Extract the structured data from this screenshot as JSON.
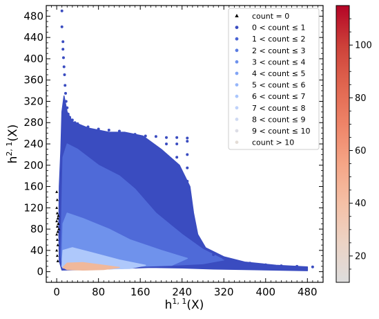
{
  "chart_data": {
    "type": "scatter",
    "xlabel": "h^{1,1}(X)",
    "ylabel": "h^{2,1}(X)",
    "xlabel_main": "h",
    "xlabel_sup": "1, 1",
    "xlabel_tail": "(X)",
    "ylabel_main": "h",
    "ylabel_sup": "2, 1",
    "ylabel_tail": "(X)",
    "xlim": [
      -20,
      510
    ],
    "ylim": [
      -20,
      500
    ],
    "xticks": [
      0,
      80,
      160,
      240,
      320,
      400,
      480
    ],
    "yticks": [
      0,
      40,
      80,
      120,
      160,
      200,
      240,
      280,
      320,
      360,
      400,
      440,
      480
    ],
    "grid": false,
    "legend_position": "top-right",
    "legend": [
      {
        "label": "count = 0",
        "marker": "triangle",
        "color": "#000000"
      },
      {
        "label": "0 < count ≤ 1",
        "marker": "circle",
        "color": "#3a4cc0"
      },
      {
        "label": "1 < count ≤ 2",
        "marker": "circle",
        "color": "#4a64d4"
      },
      {
        "label": "2 < count ≤ 3",
        "marker": "circle",
        "color": "#5a7ce2"
      },
      {
        "label": "3 < count ≤ 4",
        "marker": "circle",
        "color": "#6d91ed"
      },
      {
        "label": "4 < count ≤ 5",
        "marker": "circle",
        "color": "#81a4f5"
      },
      {
        "label": "5 < count ≤ 6",
        "marker": "circle",
        "color": "#96b6fa"
      },
      {
        "label": "6 < count ≤ 7",
        "marker": "circle",
        "color": "#aac6fd"
      },
      {
        "label": "7 < count ≤ 8",
        "marker": "circle",
        "color": "#bed2fb"
      },
      {
        "label": "8 < count ≤ 9",
        "marker": "circle",
        "color": "#cfdaf2"
      },
      {
        "label": "9 < count ≤ 10",
        "marker": "circle",
        "color": "#dcdde6"
      },
      {
        "label": "count > 10",
        "marker": "circle",
        "color": "#e3dcd6"
      }
    ],
    "colorbar": {
      "range": [
        10,
        115
      ],
      "ticks": [
        20,
        40,
        60,
        80,
        100
      ],
      "colormap": "coolwarm",
      "colors": [
        "#dddddd",
        "#ecd3c5",
        "#f5c0a6",
        "#f5a586",
        "#ee8468",
        "#e0654f",
        "#cc4039",
        "#b40426"
      ]
    },
    "regions": [
      {
        "name": "count 0-1 envelope",
        "color": "#3a4cc0",
        "polygon": [
          [
            5,
            20
          ],
          [
            4,
            80
          ],
          [
            5,
            160
          ],
          [
            8,
            230
          ],
          [
            10,
            300
          ],
          [
            14,
            330
          ],
          [
            20,
            300
          ],
          [
            30,
            282
          ],
          [
            60,
            270
          ],
          [
            100,
            262
          ],
          [
            130,
            262
          ],
          [
            165,
            255
          ],
          [
            200,
            230
          ],
          [
            235,
            200
          ],
          [
            255,
            160
          ],
          [
            262,
            110
          ],
          [
            270,
            70
          ],
          [
            285,
            45
          ],
          [
            320,
            28
          ],
          [
            360,
            18
          ],
          [
            420,
            12
          ],
          [
            480,
            9
          ],
          [
            480,
            2
          ],
          [
            360,
            4
          ],
          [
            300,
            5
          ],
          [
            240,
            7
          ],
          [
            180,
            8
          ],
          [
            120,
            6
          ],
          [
            60,
            4
          ],
          [
            10,
            3
          ]
        ]
      },
      {
        "name": "count 1-3 band",
        "color": "#4f6ad8",
        "polygon": [
          [
            8,
            30
          ],
          [
            10,
            130
          ],
          [
            12,
            215
          ],
          [
            20,
            240
          ],
          [
            40,
            230
          ],
          [
            80,
            200
          ],
          [
            120,
            180
          ],
          [
            150,
            155
          ],
          [
            190,
            110
          ],
          [
            240,
            70
          ],
          [
            280,
            42
          ],
          [
            320,
            22
          ],
          [
            280,
            15
          ],
          [
            220,
            12
          ],
          [
            160,
            12
          ],
          [
            100,
            12
          ],
          [
            40,
            12
          ],
          [
            10,
            15
          ]
        ]
      },
      {
        "name": "count 3-6 band",
        "color": "#6f92ec",
        "polygon": [
          [
            10,
            22
          ],
          [
            12,
            90
          ],
          [
            20,
            110
          ],
          [
            50,
            100
          ],
          [
            100,
            80
          ],
          [
            140,
            60
          ],
          [
            200,
            40
          ],
          [
            250,
            25
          ],
          [
            220,
            12
          ],
          [
            160,
            10
          ],
          [
            100,
            9
          ],
          [
            40,
            9
          ],
          [
            12,
            12
          ]
        ]
      },
      {
        "name": "count 6-10 band",
        "color": "#aec8fb",
        "polygon": [
          [
            10,
            10
          ],
          [
            12,
            40
          ],
          [
            30,
            45
          ],
          [
            70,
            35
          ],
          [
            120,
            22
          ],
          [
            170,
            12
          ],
          [
            140,
            6
          ],
          [
            80,
            5
          ],
          [
            30,
            6
          ],
          [
            12,
            7
          ]
        ]
      },
      {
        "name": "count >10 core",
        "color": "#f0b89b",
        "polygon": [
          [
            12,
            8
          ],
          [
            20,
            16
          ],
          [
            50,
            17
          ],
          [
            90,
            12
          ],
          [
            120,
            8
          ],
          [
            90,
            4
          ],
          [
            50,
            3
          ],
          [
            20,
            4
          ]
        ]
      }
    ],
    "sample_points": {
      "outer_spike_0_1": [
        [
          10,
          490
        ],
        [
          10,
          460
        ],
        [
          12,
          432
        ],
        [
          12,
          418
        ],
        [
          13,
          402
        ],
        [
          14,
          385
        ],
        [
          15,
          370
        ],
        [
          16,
          350
        ],
        [
          17,
          335
        ],
        [
          18,
          320
        ],
        [
          20,
          308
        ],
        [
          22,
          296
        ],
        [
          25,
          290
        ],
        [
          30,
          285
        ],
        [
          35,
          280
        ],
        [
          40,
          278
        ],
        [
          60,
          272
        ],
        [
          80,
          268
        ],
        [
          100,
          266
        ],
        [
          120,
          264
        ],
        [
          150,
          258
        ],
        [
          170,
          255
        ],
        [
          190,
          254
        ],
        [
          210,
          252
        ],
        [
          230,
          252
        ],
        [
          250,
          251
        ]
      ],
      "vertical_columns_0_1": [
        [
          210,
          240
        ],
        [
          210,
          215
        ],
        [
          210,
          190
        ],
        [
          210,
          165
        ],
        [
          230,
          240
        ],
        [
          230,
          215
        ],
        [
          230,
          190
        ],
        [
          230,
          165
        ],
        [
          250,
          245
        ],
        [
          250,
          220
        ],
        [
          250,
          195
        ],
        [
          250,
          170
        ],
        [
          250,
          145
        ]
      ],
      "tail_0_1": [
        [
          300,
          32
        ],
        [
          320,
          25
        ],
        [
          340,
          21
        ],
        [
          350,
          18
        ],
        [
          370,
          16
        ],
        [
          380,
          14
        ],
        [
          400,
          13
        ],
        [
          430,
          11
        ],
        [
          460,
          10
        ],
        [
          490,
          9
        ]
      ],
      "count_0": [
        [
          0,
          150
        ],
        [
          1,
          135
        ],
        [
          0,
          120
        ],
        [
          1,
          110
        ],
        [
          2,
          100
        ],
        [
          0,
          95
        ],
        [
          1,
          85
        ],
        [
          2,
          75
        ],
        [
          0,
          70
        ],
        [
          1,
          60
        ],
        [
          2,
          50
        ],
        [
          0,
          40
        ],
        [
          1,
          30
        ],
        [
          2,
          20
        ],
        [
          3,
          105
        ],
        [
          3,
          90
        ],
        [
          4,
          80
        ]
      ]
    }
  }
}
